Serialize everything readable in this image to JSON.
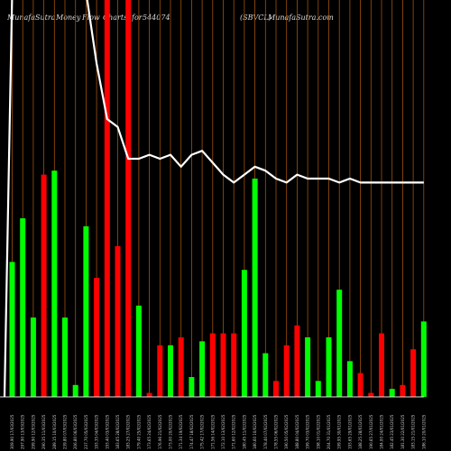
{
  "header": {
    "site_left": "MunafaSutra",
    "title_words": [
      "Money",
      "Flow",
      "Charts",
      "for"
    ],
    "symbol_code": "544074",
    "ticker": "(SBVCL)",
    "site_right": "MunafaSutra.com"
  },
  "chart_data": {
    "type": "bar",
    "title": "MunafaSutra Money Flow Charts for 544074",
    "colors": {
      "up": "#00ff00",
      "down": "#ff0000",
      "grid": "#a0520d",
      "line": "#ffffff",
      "background": "#000000"
    },
    "ylim": [
      0,
      100
    ],
    "categories": [
      "309.90 17/03/2025",
      "297.90 13/03/2025",
      "299.90 12/03/2025",
      "290.35 11/03/2025",
      "289.15 10/03/2025",
      "239.80 07/03/2025",
      "206.80 06/03/2025",
      "237.70 05/03/2025",
      "193.35 04/03/2025",
      "193.40 03/03/2025",
      "183.65 28/02/2025",
      "183.25 27/02/2025",
      "179.40 25/02/2025",
      "173.65 24/02/2025",
      "176.96 21/02/2025",
      "173.00 20/02/2025",
      "171.34 19/02/2025",
      "174.47 18/02/2025",
      "175.42 17/02/2025",
      "171.56 14/02/2025",
      "172.10 13/02/2025",
      "171.60 12/02/2025",
      "180.45 11/02/2025",
      "180.60 10/02/2025",
      "178.40 07/02/2025",
      "178.55 06/02/2025",
      "190.50 05/02/2025",
      "188.80 04/02/2025",
      "199.70 03/02/2025",
      "198.10 01/02/2025",
      "204.70 31/01/2025",
      "199.95 30/01/2025",
      "193.65 29/01/2025",
      "188.25 28/01/2025",
      "190.65 27/01/2025",
      "184.00 24/01/2025",
      "182.45 23/01/2025",
      "181.30 22/01/2025",
      "183.15 21/01/2025",
      "186.10 20/01/2025"
    ],
    "values": [
      34,
      45,
      20,
      56,
      57,
      20,
      3,
      43,
      30,
      100,
      38,
      100,
      23,
      1,
      13,
      13,
      15,
      5,
      14,
      16,
      16,
      16,
      32,
      55,
      11,
      4,
      13,
      18,
      15,
      4,
      15,
      27,
      9,
      6,
      1,
      16,
      2,
      3,
      12,
      19
    ],
    "directions": [
      "up",
      "up",
      "up",
      "down",
      "up",
      "up",
      "up",
      "up",
      "down",
      "down",
      "down",
      "down",
      "up",
      "down",
      "down",
      "up",
      "down",
      "up",
      "up",
      "down",
      "down",
      "down",
      "up",
      "up",
      "up",
      "down",
      "down",
      "down",
      "up",
      "up",
      "up",
      "up",
      "up",
      "down",
      "down",
      "down",
      "up",
      "down",
      "down",
      "up"
    ],
    "line": [
      102,
      102,
      102,
      102,
      102,
      102,
      102,
      102,
      84,
      70,
      68,
      60,
      60,
      61,
      60,
      61,
      58,
      61,
      62,
      59,
      56,
      54,
      56,
      58,
      57,
      55,
      54,
      56,
      55,
      55,
      55,
      54,
      55,
      54,
      54,
      54,
      54,
      54,
      54,
      54
    ]
  }
}
